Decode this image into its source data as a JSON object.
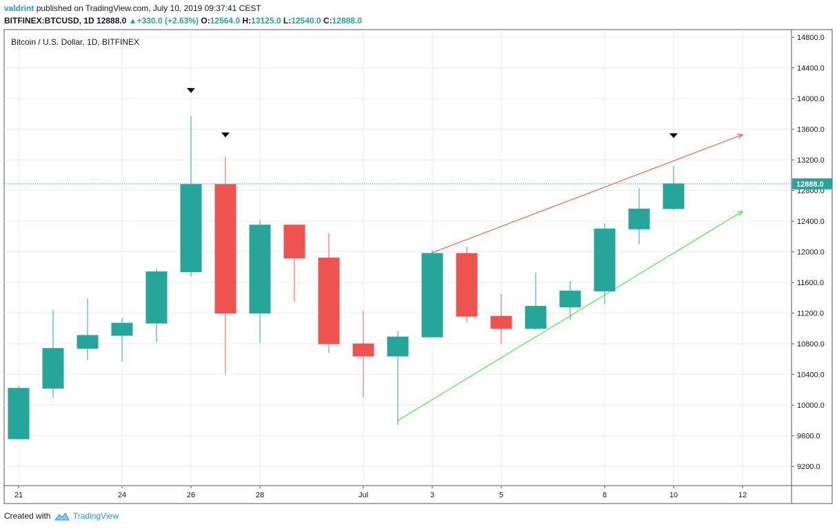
{
  "header": {
    "author": "valdrint",
    "published_text": "published on TradingView.com, July 10, 2019 09:37:41 CEST",
    "symbol": "BITFINEX:BTCUSD, 1D",
    "close_value": "12888.0",
    "change": "+330.0 (+2.63%)",
    "o_label": "O:",
    "o_value": "12564.0",
    "h_label": "H:",
    "h_value": "13125.0",
    "l_label": "L:",
    "l_value": "12540.0",
    "c_label": "C:",
    "c_value": "12888.0"
  },
  "chart_title": "Bitcoin / U.S. Dollar, 1D, BITFINEX",
  "footer": {
    "created_with": "Created with",
    "brand": "TradingView"
  },
  "colors": {
    "up": "#26a69a",
    "down": "#ef5350",
    "grid": "#e6edf3",
    "upper_line": "#f4604c",
    "lower_line": "#4cf04c",
    "last_price": "#26a69a"
  },
  "chart_data": {
    "type": "candlestick",
    "title": "Bitcoin / U.S. Dollar, 1D, BITFINEX",
    "x_tick_labels": [
      "21",
      "24",
      "26",
      "28",
      "Jul",
      "3",
      "5",
      "8",
      "10",
      "12"
    ],
    "y_tick_labels": [
      "14800.0",
      "14400.0",
      "14000.0",
      "13600.0",
      "13200.0",
      "12800.0",
      "12400.0",
      "12000.0",
      "11600.0",
      "11200.0",
      "10800.0",
      "10400.0",
      "10000.0",
      "9600.0",
      "9200.0"
    ],
    "ylim": [
      8950,
      14900
    ],
    "last_price": 12888.0,
    "last_price_label": "12888.0",
    "candles": [
      {
        "date": "2019-06-21",
        "o": 9560,
        "h": 10250,
        "l": 9560,
        "c": 10220
      },
      {
        "date": "2019-06-22",
        "o": 10220,
        "h": 11240,
        "l": 10100,
        "c": 10740
      },
      {
        "date": "2019-06-23",
        "o": 10740,
        "h": 11390,
        "l": 10590,
        "c": 10910
      },
      {
        "date": "2019-06-24",
        "o": 10910,
        "h": 11140,
        "l": 10570,
        "c": 11070
      },
      {
        "date": "2019-06-25",
        "o": 11070,
        "h": 11780,
        "l": 10820,
        "c": 11740
      },
      {
        "date": "2019-06-26",
        "o": 11740,
        "h": 13770,
        "l": 11680,
        "c": 12880
      },
      {
        "date": "2019-06-27",
        "o": 12880,
        "h": 13240,
        "l": 10400,
        "c": 11200
      },
      {
        "date": "2019-06-28",
        "o": 11200,
        "h": 12410,
        "l": 10810,
        "c": 12350
      },
      {
        "date": "2019-06-29",
        "o": 12350,
        "h": 12350,
        "l": 11350,
        "c": 11920
      },
      {
        "date": "2019-06-30",
        "o": 11920,
        "h": 12240,
        "l": 10680,
        "c": 10800
      },
      {
        "date": "2019-07-01",
        "o": 10800,
        "h": 11230,
        "l": 10100,
        "c": 10640
      },
      {
        "date": "2019-07-02",
        "o": 10640,
        "h": 10970,
        "l": 9740,
        "c": 10890
      },
      {
        "date": "2019-07-03",
        "o": 10890,
        "h": 12020,
        "l": 10890,
        "c": 11980
      },
      {
        "date": "2019-07-04",
        "o": 11980,
        "h": 12070,
        "l": 11080,
        "c": 11160
      },
      {
        "date": "2019-07-05",
        "o": 11160,
        "h": 11450,
        "l": 10800,
        "c": 11000
      },
      {
        "date": "2019-07-06",
        "o": 11000,
        "h": 11730,
        "l": 10980,
        "c": 11290
      },
      {
        "date": "2019-07-07",
        "o": 11280,
        "h": 11620,
        "l": 11110,
        "c": 11490
      },
      {
        "date": "2019-07-08",
        "o": 11490,
        "h": 12370,
        "l": 11320,
        "c": 12300
      },
      {
        "date": "2019-07-09",
        "o": 12300,
        "h": 12830,
        "l": 12100,
        "c": 12560
      },
      {
        "date": "2019-07-10",
        "o": 12564,
        "h": 13125,
        "l": 12540,
        "c": 12888
      }
    ],
    "trendlines": [
      {
        "from": {
          "date": "2019-07-03",
          "price": 11990
        },
        "to": {
          "date": "2019-07-12",
          "price": 13530
        },
        "color": "upper_line"
      },
      {
        "from": {
          "date": "2019-07-02",
          "price": 9800
        },
        "to": {
          "date": "2019-07-12",
          "price": 12530
        },
        "color": "lower_line"
      }
    ],
    "markers": [
      {
        "date": "2019-06-26",
        "price": 14110
      },
      {
        "date": "2019-06-27",
        "price": 13530
      },
      {
        "date": "2019-07-10",
        "price": 13520
      }
    ]
  }
}
